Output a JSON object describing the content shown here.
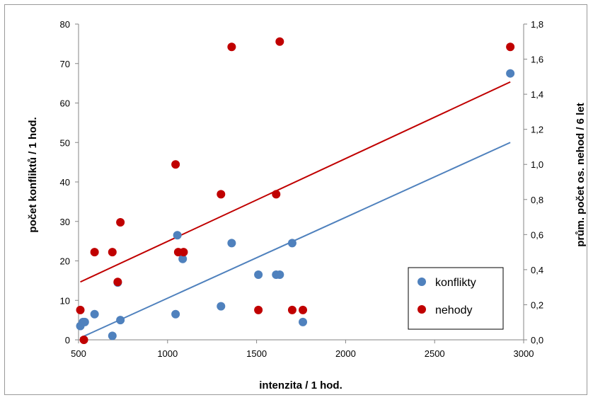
{
  "chart_data": {
    "type": "scatter",
    "xlabel": "intenzita / 1 hod.",
    "ylabel_left": "počet konfliktů / 1 hod.",
    "ylabel_right": "prům. počet os. nehod / 6 let",
    "x_ticks": [
      "500",
      "1000",
      "1500",
      "2000",
      "2500",
      "3000"
    ],
    "y_left_ticks": [
      "0",
      "10",
      "20",
      "30",
      "40",
      "50",
      "60",
      "70",
      "80"
    ],
    "y_right_ticks": [
      "0,0",
      "0,2",
      "0,4",
      "0,6",
      "0,8",
      "1,0",
      "1,2",
      "1,4",
      "1,6",
      "1,8"
    ],
    "xlim": [
      500,
      3000
    ],
    "ylim_left": [
      0,
      80
    ],
    "ylim_right": [
      0,
      1.8
    ],
    "grid": false,
    "legend_position": "bottom-right",
    "series": [
      {
        "name": "konflikty",
        "axis": "left",
        "color": "#4f81bd",
        "points": [
          [
            510,
            3.5
          ],
          [
            525,
            4.5
          ],
          [
            535,
            4.5
          ],
          [
            590,
            6.5
          ],
          [
            690,
            1.0
          ],
          [
            720,
            14.5
          ],
          [
            735,
            5.0
          ],
          [
            1045,
            6.5
          ],
          [
            1055,
            26.5
          ],
          [
            1085,
            20.5
          ],
          [
            1300,
            8.5
          ],
          [
            1360,
            24.5
          ],
          [
            1510,
            16.5
          ],
          [
            1610,
            16.5
          ],
          [
            1630,
            16.5
          ],
          [
            1700,
            24.5
          ],
          [
            1760,
            4.5
          ],
          [
            2925,
            67.5
          ]
        ],
        "trend": {
          "x": [
            510,
            2925
          ],
          "y": [
            0.5,
            50.0
          ]
        }
      },
      {
        "name": "nehody",
        "axis": "right",
        "color": "#c00000",
        "points": [
          [
            510,
            0.17
          ],
          [
            530,
            0.0
          ],
          [
            590,
            0.5
          ],
          [
            690,
            0.5
          ],
          [
            720,
            0.33
          ],
          [
            735,
            0.67
          ],
          [
            1045,
            1.0
          ],
          [
            1060,
            0.5
          ],
          [
            1090,
            0.5
          ],
          [
            1300,
            0.83
          ],
          [
            1360,
            1.67
          ],
          [
            1510,
            0.17
          ],
          [
            1610,
            0.83
          ],
          [
            1630,
            1.7
          ],
          [
            1700,
            0.17
          ],
          [
            1760,
            0.17
          ],
          [
            2925,
            1.67
          ]
        ],
        "trend": {
          "x": [
            510,
            2925
          ],
          "y": [
            0.33,
            1.47
          ]
        }
      }
    ]
  }
}
